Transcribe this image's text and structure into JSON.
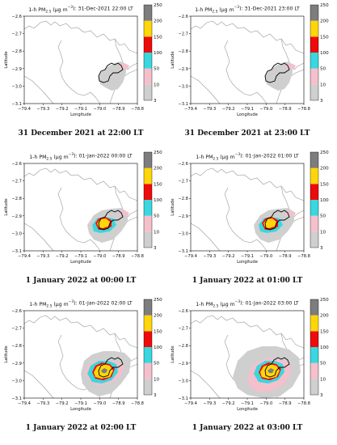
{
  "colors": {
    "pm_3_10": "#cfcfcf",
    "pm_10_50": "#f4c0cb",
    "pm_50_100": "#3ad7df",
    "pm_100_150": "#ee0b0b",
    "pm_150_200": "#ffd60a",
    "pm_200_250": "#7d7d7d",
    "boundary": "#999999",
    "city_outline": "#000000"
  },
  "colorbar": {
    "levels": [
      "3",
      "10",
      "50",
      "100",
      "150",
      "200",
      "250"
    ]
  },
  "axes": {
    "xlabel": "Longitude",
    "ylabel": "Latitude",
    "xticks": [
      "−79.4",
      "−79.3",
      "−79.2",
      "−79.1",
      "−79.0",
      "−78.9",
      "−78.8"
    ],
    "yticks": [
      "−2.6",
      "−2.7",
      "−2.8",
      "−2.9",
      "−3.0",
      "−3.1"
    ]
  },
  "panels": [
    {
      "title_prefix": "1-h PM",
      "title_sub": "2.5",
      "title_unit": " (µg m",
      "title_exp": "−3",
      "title_suffix": "): 31-Dec-2021 22:00 LT",
      "caption": "31 December 2021 at 22:00 LT"
    },
    {
      "title_prefix": "1-h PM",
      "title_sub": "2.5",
      "title_unit": " (µg m",
      "title_exp": "−3",
      "title_suffix": "): 31-Dec-2021 23:00 LT",
      "caption": "31 December 2021 at 23:00 LT"
    },
    {
      "title_prefix": "1-h PM",
      "title_sub": "2.5",
      "title_unit": " (µg m",
      "title_exp": "−3",
      "title_suffix": "): 01-Jan-2022 00:00 LT",
      "caption": "1 January 2022 at 00:00 LT"
    },
    {
      "title_prefix": "1-h PM",
      "title_sub": "2.5",
      "title_unit": " (µg m",
      "title_exp": "−3",
      "title_suffix": "): 01-Jan-2022 01:00 LT",
      "caption": "1 January 2022 at 01:00 LT"
    },
    {
      "title_prefix": "1-h PM",
      "title_sub": "2.5",
      "title_unit": " (µg m",
      "title_exp": "−3",
      "title_suffix": "): 01-Jan-2022 02:00 LT",
      "caption": "1 January 2022 at 02:00 LT"
    },
    {
      "title_prefix": "1-h PM",
      "title_sub": "2.5",
      "title_unit": " (µg m",
      "title_exp": "−3",
      "title_suffix": "): 01-Jan-2022 03:00 LT",
      "caption": "1 January 2022 at 03:00 LT"
    }
  ]
}
